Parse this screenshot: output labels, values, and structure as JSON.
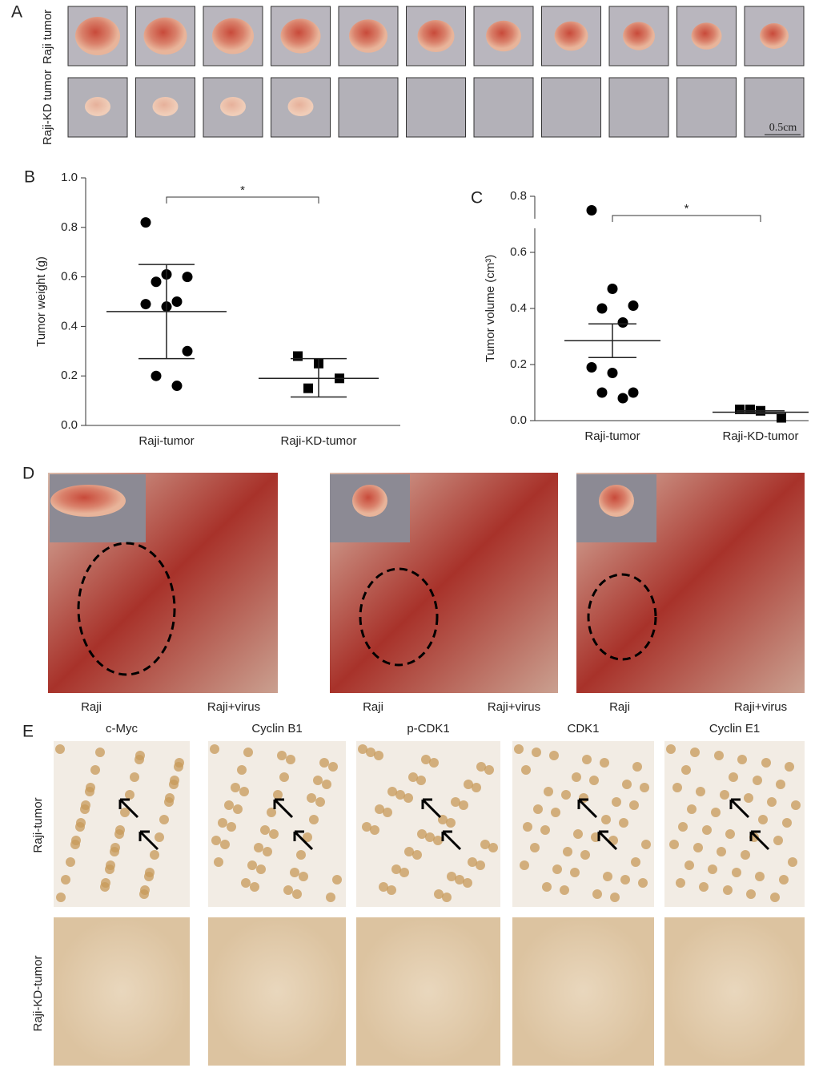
{
  "panel_labels": [
    "A",
    "B",
    "C",
    "D",
    "E"
  ],
  "panel_a": {
    "rows": [
      "Raji tumor",
      "Raji-KD tumor"
    ],
    "scale_bar": "0.5cm"
  },
  "panel_d": {
    "images": [
      {
        "left": "Raji",
        "right": "Raji+virus"
      },
      {
        "left": "Raji",
        "right": "Raji+virus"
      },
      {
        "left": "Raji",
        "right": "Raji+virus"
      }
    ]
  },
  "panel_e": {
    "columns": [
      "c-Myc",
      "Cyclin B1",
      "p-CDK1",
      "CDK1",
      "Cyclin E1"
    ],
    "rows": [
      "Raji-tumor",
      "Raji-KD-tumor"
    ]
  },
  "chart_data": [
    {
      "type": "dot",
      "y_label": "Tumor weight (g)",
      "annotation": "*",
      "categories": [
        "Raji-tumor",
        "Raji-KD-tumor"
      ],
      "markers": [
        "circle",
        "square"
      ],
      "color": "#000000",
      "ylim": [
        0,
        1
      ],
      "yticks": [
        {
          "value": 0,
          "label": "0.0"
        },
        0.2,
        0.4,
        0.6,
        0.8,
        {
          "value": 1,
          "label": "1.0"
        }
      ],
      "groups": [
        {
          "values": [
            0.82,
            0.61,
            0.6,
            0.58,
            0.5,
            0.49,
            0.48,
            0.3,
            0.2,
            0.16
          ],
          "mean": 0.46,
          "error_low": 0.27,
          "error_high": 0.65
        },
        {
          "values": [
            0.28,
            0.25,
            0.19,
            0.15
          ],
          "mean": 0.19,
          "error_low": 0.115,
          "error_high": 0.27
        }
      ]
    },
    {
      "type": "dot",
      "y_label": "Tumor volume (cm³)",
      "annotation": "*",
      "categories": [
        "Raji-tumor",
        "Raji-KD-tumor"
      ],
      "markers": [
        "circle",
        "square"
      ],
      "color": "#000000",
      "ylim": [
        0,
        0.8
      ],
      "yticks": [
        {
          "value": 0,
          "label": "0.0"
        },
        0.2,
        0.4,
        0.6,
        0.8
      ],
      "groups": [
        {
          "values": [
            0.75,
            0.47,
            0.41,
            0.4,
            0.35,
            0.19,
            0.17,
            0.1,
            0.1,
            0.08
          ],
          "mean": 0.285,
          "error_low": 0.225,
          "error_high": 0.345
        },
        {
          "values": [
            0.04,
            0.035,
            0.01,
            0.04
          ],
          "mean": 0.03,
          "error_low": 0.025,
          "error_high": 0.035
        }
      ]
    }
  ]
}
